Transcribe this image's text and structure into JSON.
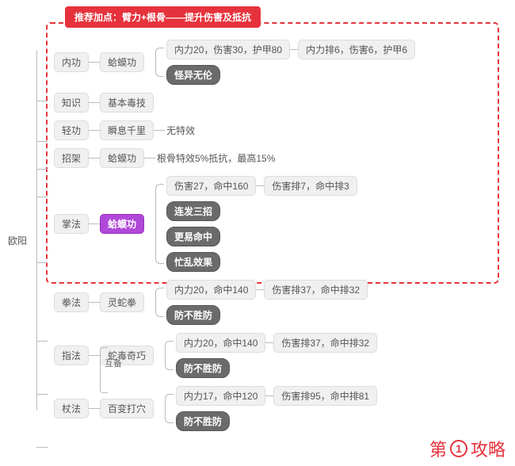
{
  "banner": "推荐加点：臂力+根骨——提升伤害及抵抗",
  "root": "欧阳",
  "watermark": {
    "pre": "第",
    "num": "1",
    "post": "攻略"
  },
  "hubei_label": "互备",
  "branches": [
    {
      "cat": "内功",
      "skill": "蛤蟆功",
      "skill_style": "",
      "children": [
        {
          "stat": "内力20，伤害30，护甲80",
          "rank": "内力排6，伤害6，护甲6"
        },
        {
          "tag": "怪异无伦",
          "tag_style": "dark"
        }
      ]
    },
    {
      "cat": "知识",
      "skill": "基本毒技",
      "skill_style": ""
    },
    {
      "cat": "轻功",
      "skill": "瞬息千里",
      "skill_style": "",
      "tail": "无特效"
    },
    {
      "cat": "招架",
      "skill": "蛤蟆功",
      "skill_style": "",
      "tail": "根骨特效5%抵抗，最高15%"
    },
    {
      "cat": "掌法",
      "skill": "蛤蟆功",
      "skill_style": "purple",
      "children": [
        {
          "stat": "伤害27，命中160",
          "rank": "伤害排7，命中排3"
        },
        {
          "tag": "连发三招",
          "tag_style": "dark"
        },
        {
          "tag": "更易命中",
          "tag_style": "dark"
        },
        {
          "tag": "忙乱效果",
          "tag_style": "dark"
        }
      ]
    },
    {
      "cat": "拳法",
      "skill": "灵蛇拳",
      "skill_style": "",
      "children": [
        {
          "stat": "内力20，命中140",
          "rank": "伤害排37，命中排32"
        },
        {
          "tag": "防不胜防",
          "tag_style": "dark"
        }
      ]
    },
    {
      "cat": "指法",
      "skill": "蛇毒奇巧",
      "skill_style": "",
      "children": [
        {
          "stat": "内力20，命中140",
          "rank": "伤害排37，命中排32"
        },
        {
          "tag": "防不胜防",
          "tag_style": "dark"
        }
      ]
    },
    {
      "cat": "杖法",
      "skill": "百变打穴",
      "skill_style": "",
      "children": [
        {
          "stat": "内力17，命中120",
          "rank": "伤害排95，命中排81"
        },
        {
          "tag": "防不胜防",
          "tag_style": "dark"
        }
      ]
    }
  ],
  "colors": {
    "accent_red": "#e6323c",
    "node_bg": "#f0f0f0",
    "node_dark": "#6b6b6b",
    "node_purple": "#b048d8",
    "line": "#bbbbbb",
    "text": "#555555"
  }
}
